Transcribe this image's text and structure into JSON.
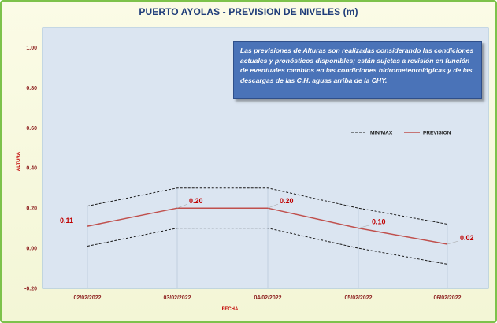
{
  "chart_data": {
    "type": "line",
    "title": "PUERTO AYOLAS - PREVISION DE NIVELES (m)",
    "xlabel": "FECHA",
    "ylabel": "ALTURA",
    "categories": [
      "02/02/2022",
      "03/02/2022",
      "04/02/2022",
      "05/02/2022",
      "06/02/2022"
    ],
    "ylim": [
      -0.2,
      1.1
    ],
    "yticks": [
      -0.2,
      0.0,
      0.2,
      0.4,
      0.6,
      0.8,
      1.0
    ],
    "ytick_labels": [
      "-0.20",
      "0.00",
      "0.20",
      "0.40",
      "0.60",
      "0.80",
      "1.00"
    ],
    "series": [
      {
        "name": "PREVISION",
        "values": [
          0.11,
          0.2,
          0.2,
          0.1,
          0.02
        ],
        "labels": [
          "0.11",
          "0.20",
          "0.20",
          "0.10",
          "0.02"
        ],
        "color": "#c0504d",
        "style": "solid"
      },
      {
        "name": "MIN/MAX",
        "values": [
          0.21,
          0.3,
          0.3,
          0.2,
          0.12
        ],
        "color": "#1a1a1a",
        "style": "dashed"
      },
      {
        "name": "",
        "values": [
          0.01,
          0.1,
          0.1,
          0.0,
          -0.08
        ],
        "color": "#1a1a1a",
        "style": "dashed"
      }
    ],
    "legend_position": "top-right",
    "grid": false,
    "note": "Las previsiones de Alturas son realizadas considerando las condiciones actuales y pronósticos disponibles; están sujetas a revisión en función de eventuales cambios en las condiciones hidrometeorológicas y de las descargas de las C.H. aguas arriba de la CHY.",
    "colors": {
      "plot_bg": "#dbe5f1",
      "frame_border": "#7dc24b",
      "note_bg": "#4a73b8",
      "title": "#1f3d7a"
    }
  }
}
